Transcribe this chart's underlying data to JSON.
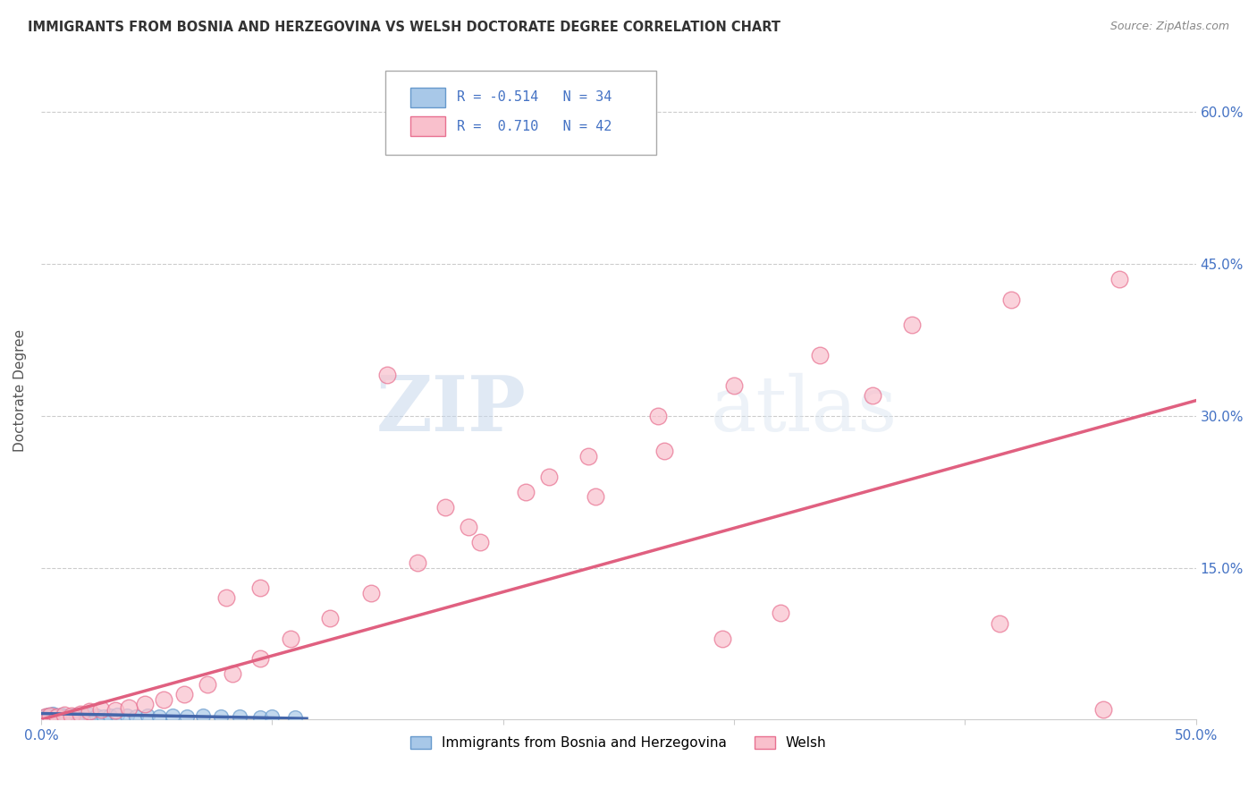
{
  "title": "IMMIGRANTS FROM BOSNIA AND HERZEGOVINA VS WELSH DOCTORATE DEGREE CORRELATION CHART",
  "source": "Source: ZipAtlas.com",
  "ylabel": "Doctorate Degree",
  "xlim": [
    0.0,
    0.5
  ],
  "ylim": [
    0.0,
    0.65
  ],
  "yticks_right": [
    0.15,
    0.3,
    0.45,
    0.6
  ],
  "ytick_labels_right": [
    "15.0%",
    "30.0%",
    "45.0%",
    "60.0%"
  ],
  "blue_color": "#a8c8e8",
  "blue_edge_color": "#6699cc",
  "pink_color": "#f9c0cc",
  "pink_edge_color": "#e87090",
  "blue_line_color": "#4466aa",
  "pink_line_color": "#e06080",
  "legend_R_blue": "R = -0.514",
  "legend_N_blue": "N = 34",
  "legend_R_pink": "R =  0.710",
  "legend_N_pink": "N = 42",
  "legend_label_blue": "Immigrants from Bosnia and Herzegovina",
  "legend_label_pink": "Welsh",
  "watermark_zip": "ZIP",
  "watermark_atlas": "atlas",
  "blue_scatter_x": [
    0.001,
    0.002,
    0.003,
    0.003,
    0.004,
    0.005,
    0.005,
    0.006,
    0.007,
    0.008,
    0.009,
    0.01,
    0.011,
    0.013,
    0.015,
    0.017,
    0.019,
    0.021,
    0.024,
    0.027,
    0.03,
    0.033,
    0.037,
    0.041,
    0.046,
    0.051,
    0.057,
    0.063,
    0.07,
    0.078,
    0.086,
    0.095,
    0.1,
    0.11
  ],
  "blue_scatter_y": [
    0.003,
    0.004,
    0.002,
    0.005,
    0.003,
    0.004,
    0.006,
    0.003,
    0.004,
    0.003,
    0.005,
    0.004,
    0.003,
    0.004,
    0.005,
    0.004,
    0.003,
    0.005,
    0.004,
    0.003,
    0.004,
    0.005,
    0.004,
    0.003,
    0.004,
    0.003,
    0.004,
    0.003,
    0.004,
    0.003,
    0.003,
    0.002,
    0.003,
    0.002
  ],
  "pink_scatter_x": [
    0.002,
    0.004,
    0.007,
    0.01,
    0.013,
    0.017,
    0.021,
    0.026,
    0.032,
    0.038,
    0.045,
    0.053,
    0.062,
    0.072,
    0.083,
    0.095,
    0.108,
    0.125,
    0.143,
    0.163,
    0.185,
    0.21,
    0.237,
    0.267,
    0.3,
    0.337,
    0.377,
    0.42,
    0.467,
    0.08,
    0.095,
    0.175,
    0.22,
    0.27,
    0.32,
    0.36,
    0.415,
    0.46,
    0.15,
    0.19,
    0.24,
    0.295
  ],
  "pink_scatter_y": [
    0.003,
    0.004,
    0.003,
    0.005,
    0.004,
    0.006,
    0.008,
    0.01,
    0.009,
    0.012,
    0.015,
    0.02,
    0.025,
    0.035,
    0.045,
    0.06,
    0.08,
    0.1,
    0.125,
    0.155,
    0.19,
    0.225,
    0.26,
    0.3,
    0.33,
    0.36,
    0.39,
    0.415,
    0.435,
    0.12,
    0.13,
    0.21,
    0.24,
    0.265,
    0.105,
    0.32,
    0.095,
    0.01,
    0.34,
    0.175,
    0.22,
    0.08
  ],
  "blue_line_x": [
    0.0,
    0.115
  ],
  "blue_line_y": [
    0.006,
    0.001
  ],
  "pink_line_x": [
    0.0,
    0.5
  ],
  "pink_line_y": [
    0.0,
    0.315
  ],
  "grid_color": "#cccccc",
  "background_color": "#ffffff",
  "title_color": "#333333",
  "axis_label_color": "#555555",
  "tick_color": "#4472c4"
}
